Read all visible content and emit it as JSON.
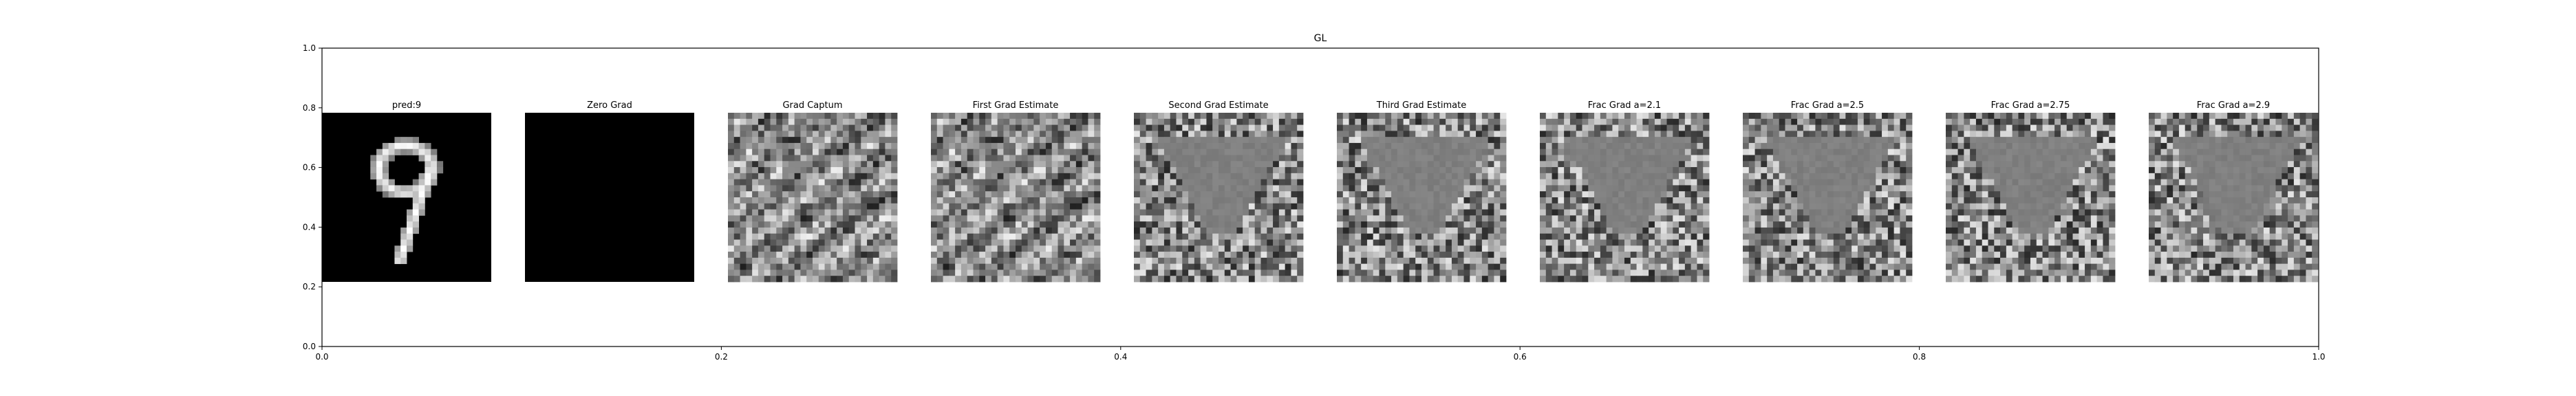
{
  "figure": {
    "title": "GL",
    "panels": [
      {
        "title": "pred:9",
        "kind": "digit"
      },
      {
        "title": "Zero Grad",
        "kind": "zero"
      },
      {
        "title": "Grad Captum",
        "kind": "noise",
        "seed": 11
      },
      {
        "title": "First Grad Estimate",
        "kind": "noise",
        "seed": 11
      },
      {
        "title": "Second Grad Estimate",
        "kind": "blob",
        "seed": 23
      },
      {
        "title": "Third Grad Estimate",
        "kind": "blob",
        "seed": 37
      },
      {
        "title": "Frac Grad a=2.1",
        "kind": "blob",
        "seed": 41
      },
      {
        "title": "Frac Grad a=2.5",
        "kind": "blob",
        "seed": 53
      },
      {
        "title": "Frac Grad a=2.75",
        "kind": "blob",
        "seed": 67
      },
      {
        "title": "Frac Grad a=2.9",
        "kind": "blob",
        "seed": 79
      }
    ]
  },
  "chart_data": {
    "type": "heatmap",
    "title": "GL",
    "xlim": [
      0.0,
      1.0
    ],
    "ylim": [
      0.0,
      1.0
    ],
    "x_ticks": [
      "0.0",
      "0.2",
      "0.4",
      "0.6",
      "0.8",
      "1.0"
    ],
    "y_ticks": [
      "0.0",
      "0.2",
      "0.4",
      "0.6",
      "0.8",
      "1.0"
    ],
    "grid": false,
    "colormap": "gray",
    "grid_size": 28
  }
}
